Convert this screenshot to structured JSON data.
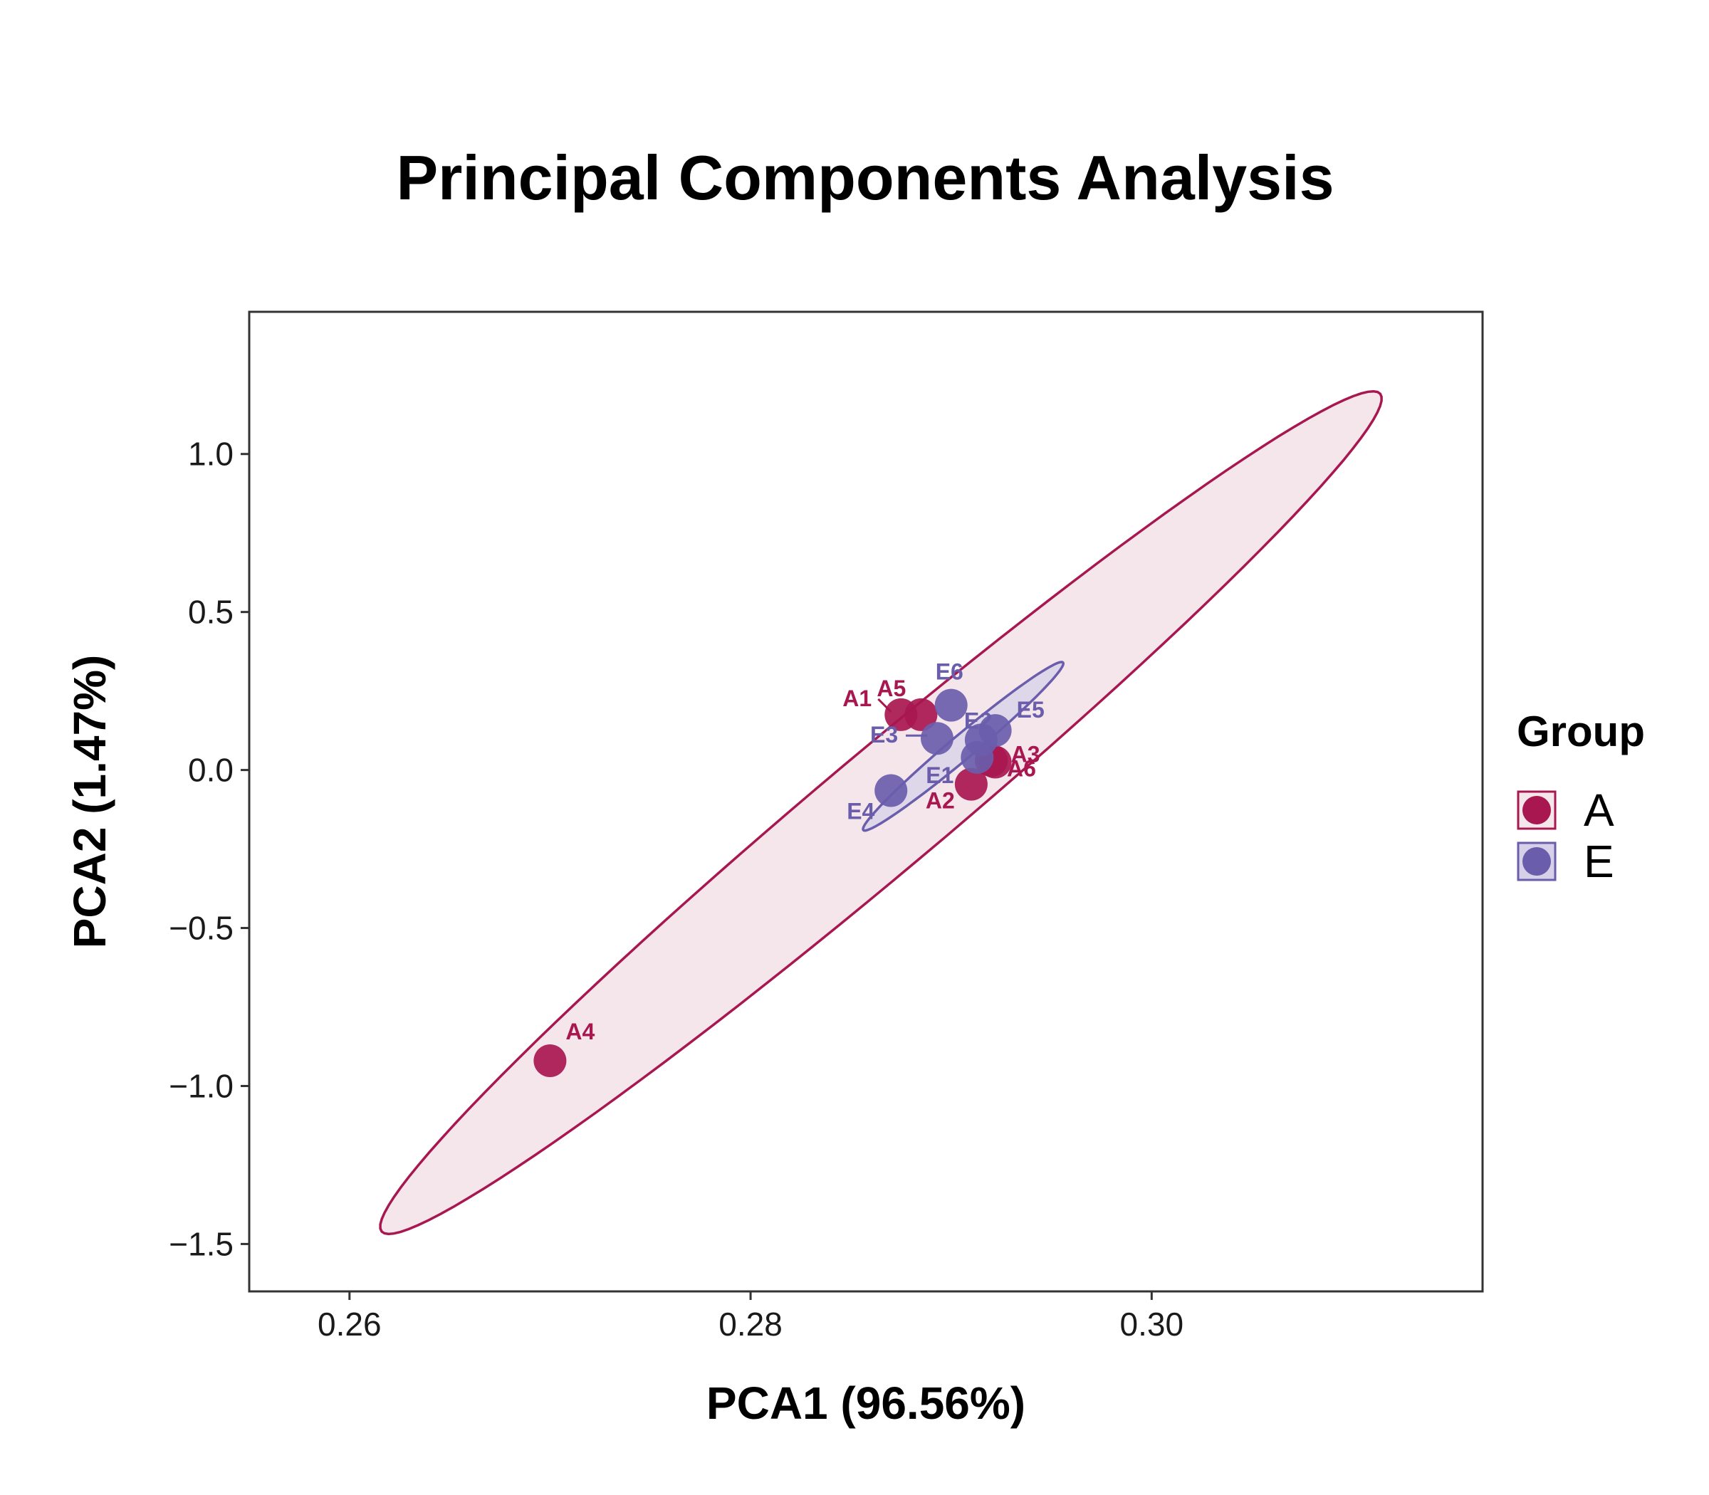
{
  "chart_data": {
    "type": "scatter",
    "title": "Principal Components Analysis",
    "xlabel": "PCA1 (96.56%)",
    "ylabel": "PCA2 (1.47%)",
    "xlim": [
      0.255,
      0.3165
    ],
    "ylim": [
      -1.65,
      1.45
    ],
    "x_ticks": [
      {
        "value": 0.26,
        "label": "0.26"
      },
      {
        "value": 0.28,
        "label": "0.28"
      },
      {
        "value": 0.3,
        "label": "0.30"
      }
    ],
    "y_ticks": [
      {
        "value": 1.0,
        "label": "1.0"
      },
      {
        "value": 0.5,
        "label": "0.5"
      },
      {
        "value": 0.0,
        "label": "0.0"
      },
      {
        "value": -0.5,
        "label": "−0.5"
      },
      {
        "value": -1.0,
        "label": "−1.0"
      },
      {
        "value": -1.5,
        "label": "−1.5"
      }
    ],
    "grid": false,
    "legend": {
      "title": "Group",
      "position": "right"
    },
    "series": [
      {
        "name": "A",
        "color": "#A8174F",
        "fill": "#F5E6EC",
        "ellipse": {
          "cx": 0.2865,
          "cy": -0.135,
          "rx": 0.0325,
          "ry": 0.19,
          "angle_deg": 40
        },
        "points": [
          {
            "label": "A1",
            "x": 0.2875,
            "y": 0.175
          },
          {
            "label": "A2",
            "x": 0.291,
            "y": -0.045
          },
          {
            "label": "A3",
            "x": 0.2922,
            "y": 0.025
          },
          {
            "label": "A4",
            "x": 0.27,
            "y": -0.92
          },
          {
            "label": "A5",
            "x": 0.2885,
            "y": 0.175
          },
          {
            "label": "A6",
            "x": 0.292,
            "y": 0.03
          }
        ]
      },
      {
        "name": "E",
        "color": "#6A5DAB",
        "fill": "#D6D0E8",
        "ellipse": {
          "cx": 0.2906,
          "cy": 0.075,
          "rx": 0.0065,
          "ry": 0.038,
          "angle_deg": 40
        },
        "points": [
          {
            "label": "E1",
            "x": 0.2913,
            "y": 0.04
          },
          {
            "label": "E2",
            "x": 0.2915,
            "y": 0.095
          },
          {
            "label": "E3",
            "x": 0.2893,
            "y": 0.1
          },
          {
            "label": "E4",
            "x": 0.287,
            "y": -0.065
          },
          {
            "label": "E5",
            "x": 0.2922,
            "y": 0.125
          },
          {
            "label": "E6",
            "x": 0.29,
            "y": 0.205
          }
        ]
      }
    ]
  }
}
